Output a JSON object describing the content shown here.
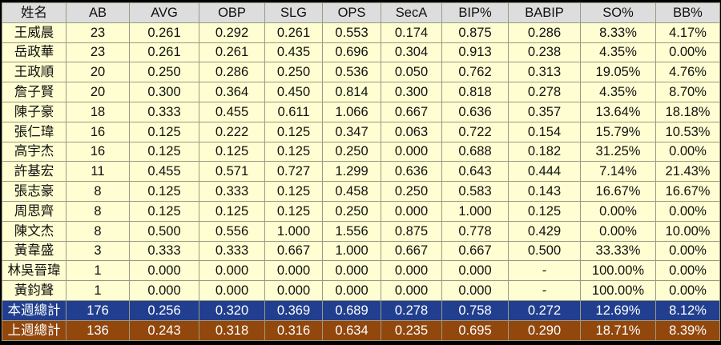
{
  "chart_data": {
    "type": "table",
    "columns": [
      "姓名",
      "AB",
      "AVG",
      "OBP",
      "SLG",
      "OPS",
      "SecA",
      "BIP%",
      "BABIP",
      "SO%",
      "BB%"
    ],
    "rows": [
      [
        "王威晨",
        "23",
        "0.261",
        "0.292",
        "0.261",
        "0.553",
        "0.174",
        "0.875",
        "0.286",
        "8.33%",
        "4.17%"
      ],
      [
        "岳政華",
        "23",
        "0.261",
        "0.261",
        "0.435",
        "0.696",
        "0.304",
        "0.913",
        "0.238",
        "4.35%",
        "0.00%"
      ],
      [
        "王政順",
        "20",
        "0.250",
        "0.286",
        "0.250",
        "0.536",
        "0.050",
        "0.762",
        "0.313",
        "19.05%",
        "4.76%"
      ],
      [
        "詹子賢",
        "20",
        "0.300",
        "0.364",
        "0.450",
        "0.814",
        "0.300",
        "0.818",
        "0.278",
        "4.35%",
        "8.70%"
      ],
      [
        "陳子豪",
        "18",
        "0.333",
        "0.455",
        "0.611",
        "1.066",
        "0.667",
        "0.636",
        "0.357",
        "13.64%",
        "18.18%"
      ],
      [
        "張仁瑋",
        "16",
        "0.125",
        "0.222",
        "0.125",
        "0.347",
        "0.063",
        "0.722",
        "0.154",
        "15.79%",
        "10.53%"
      ],
      [
        "高宇杰",
        "16",
        "0.125",
        "0.125",
        "0.125",
        "0.250",
        "0.000",
        "0.688",
        "0.182",
        "31.25%",
        "0.00%"
      ],
      [
        "許基宏",
        "11",
        "0.455",
        "0.571",
        "0.727",
        "1.299",
        "0.636",
        "0.643",
        "0.444",
        "7.14%",
        "21.43%"
      ],
      [
        "張志豪",
        "8",
        "0.125",
        "0.333",
        "0.125",
        "0.458",
        "0.250",
        "0.583",
        "0.143",
        "16.67%",
        "16.67%"
      ],
      [
        "周思齊",
        "8",
        "0.125",
        "0.125",
        "0.125",
        "0.250",
        "0.000",
        "1.000",
        "0.125",
        "0.00%",
        "0.00%"
      ],
      [
        "陳文杰",
        "8",
        "0.500",
        "0.556",
        "1.000",
        "1.556",
        "0.875",
        "0.778",
        "0.429",
        "0.00%",
        "10.00%"
      ],
      [
        "黃韋盛",
        "3",
        "0.333",
        "0.333",
        "0.667",
        "1.000",
        "0.667",
        "0.667",
        "0.500",
        "33.33%",
        "0.00%"
      ],
      [
        "林吳晉瑋",
        "1",
        "0.000",
        "0.000",
        "0.000",
        "0.000",
        "0.000",
        "0.000",
        "-",
        "100.00%",
        "0.00%"
      ],
      [
        "黃鈞聲",
        "1",
        "0.000",
        "0.000",
        "0.000",
        "0.000",
        "0.000",
        "0.000",
        "-",
        "100.00%",
        "0.00%"
      ]
    ],
    "totals": [
      [
        "本週總計",
        "176",
        "0.256",
        "0.320",
        "0.369",
        "0.689",
        "0.278",
        "0.758",
        "0.272",
        "12.69%",
        "8.12%"
      ],
      [
        "上週總計",
        "136",
        "0.243",
        "0.318",
        "0.316",
        "0.634",
        "0.235",
        "0.695",
        "0.290",
        "18.71%",
        "8.39%"
      ]
    ]
  },
  "colors": {
    "header_bg": "#dddddd",
    "row_bg": "#fefed2",
    "this_week_bg": "#213f8e",
    "last_week_bg": "#92470c",
    "grid": "#9a9a84",
    "background": "#000000"
  }
}
